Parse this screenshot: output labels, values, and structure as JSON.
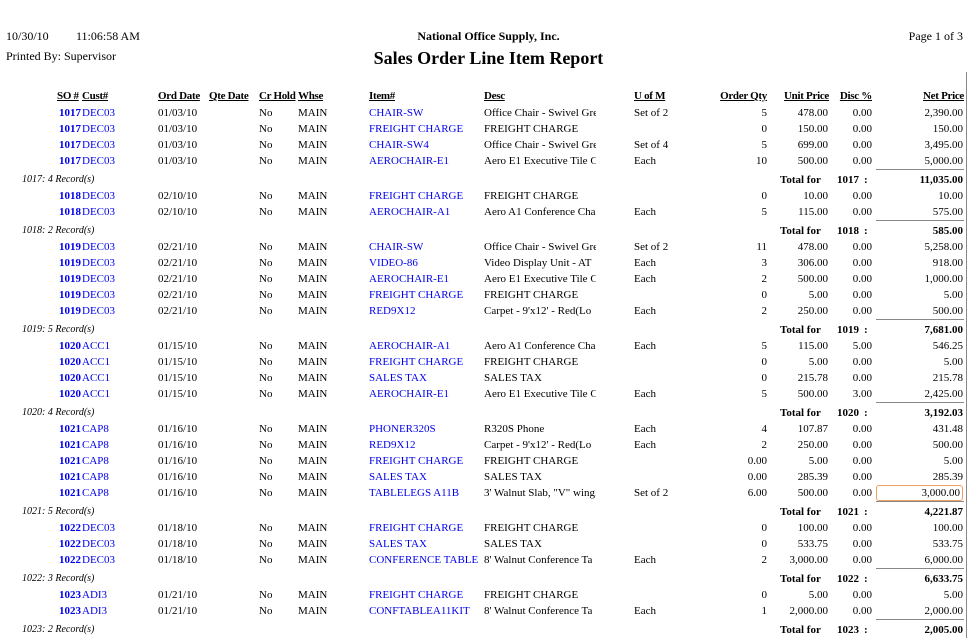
{
  "header": {
    "date": "10/30/10",
    "time": "11:06:58 AM",
    "printed_by": "Printed By: Supervisor",
    "company": "National Office Supply, Inc.",
    "title": "Sales Order Line Item Report",
    "page": "Page 1 of 3"
  },
  "columns": {
    "so": "SO #",
    "cust": "Cust#",
    "ord_date": "Ord Date",
    "qte_date": "Qte Date",
    "cr_hold": "Cr Hold",
    "whse": "Whse",
    "item": "Item#",
    "desc": "Desc",
    "uom": "U of M",
    "qty": "Order Qty",
    "price": "Unit Price",
    "disc": "Disc %",
    "net": "Net Price"
  },
  "total_label": "Total for",
  "groups": [
    {
      "so": "1017",
      "records": "1017: 4 Record(s)",
      "total": "11,035.00",
      "lines": [
        {
          "cust": "DEC03",
          "ord": "01/03/10",
          "hold": "No",
          "whse": "MAIN",
          "item": "CHAIR-SW",
          "desc": "Office Chair - Swivel Gre",
          "uom": "Set of 2",
          "qty": "5",
          "price": "478.00",
          "disc": "0.00",
          "net": "2,390.00"
        },
        {
          "cust": "DEC03",
          "ord": "01/03/10",
          "hold": "No",
          "whse": "MAIN",
          "item": "FREIGHT CHARGE",
          "desc": "FREIGHT CHARGE",
          "uom": "",
          "qty": "0",
          "price": "150.00",
          "disc": "0.00",
          "net": "150.00"
        },
        {
          "cust": "DEC03",
          "ord": "01/03/10",
          "hold": "No",
          "whse": "MAIN",
          "item": "CHAIR-SW4",
          "desc": "Office Chair - Swivel Gre",
          "uom": "Set of 4",
          "qty": "5",
          "price": "699.00",
          "disc": "0.00",
          "net": "3,495.00"
        },
        {
          "cust": "DEC03",
          "ord": "01/03/10",
          "hold": "No",
          "whse": "MAIN",
          "item": "AEROCHAIR-E1",
          "desc": "Aero E1 Executive Tile C",
          "uom": "Each",
          "qty": "10",
          "price": "500.00",
          "disc": "0.00",
          "net": "5,000.00"
        }
      ]
    },
    {
      "so": "1018",
      "records": "1018: 2 Record(s)",
      "total": "585.00",
      "lines": [
        {
          "cust": "DEC03",
          "ord": "02/10/10",
          "hold": "No",
          "whse": "MAIN",
          "item": "FREIGHT CHARGE",
          "desc": "FREIGHT CHARGE",
          "uom": "",
          "qty": "0",
          "price": "10.00",
          "disc": "0.00",
          "net": "10.00"
        },
        {
          "cust": "DEC03",
          "ord": "02/10/10",
          "hold": "No",
          "whse": "MAIN",
          "item": "AEROCHAIR-A1",
          "desc": "Aero A1 Conference Cha",
          "uom": "Each",
          "qty": "5",
          "price": "115.00",
          "disc": "0.00",
          "net": "575.00"
        }
      ]
    },
    {
      "so": "1019",
      "records": "1019: 5 Record(s)",
      "total": "7,681.00",
      "lines": [
        {
          "cust": "DEC03",
          "ord": "02/21/10",
          "hold": "No",
          "whse": "MAIN",
          "item": "CHAIR-SW",
          "desc": "Office Chair - Swivel Gre",
          "uom": "Set of 2",
          "qty": "11",
          "price": "478.00",
          "disc": "0.00",
          "net": "5,258.00"
        },
        {
          "cust": "DEC03",
          "ord": "02/21/10",
          "hold": "No",
          "whse": "MAIN",
          "item": "VIDEO-86",
          "desc": "Video Display Unit - AT",
          "uom": "Each",
          "qty": "3",
          "price": "306.00",
          "disc": "0.00",
          "net": "918.00"
        },
        {
          "cust": "DEC03",
          "ord": "02/21/10",
          "hold": "No",
          "whse": "MAIN",
          "item": "AEROCHAIR-E1",
          "desc": "Aero E1 Executive Tile C",
          "uom": "Each",
          "qty": "2",
          "price": "500.00",
          "disc": "0.00",
          "net": "1,000.00"
        },
        {
          "cust": "DEC03",
          "ord": "02/21/10",
          "hold": "No",
          "whse": "MAIN",
          "item": "FREIGHT CHARGE",
          "desc": "FREIGHT CHARGE",
          "uom": "",
          "qty": "0",
          "price": "5.00",
          "disc": "0.00",
          "net": "5.00"
        },
        {
          "cust": "DEC03",
          "ord": "02/21/10",
          "hold": "No",
          "whse": "MAIN",
          "item": "RED9X12",
          "desc": "Carpet - 9'x12' - Red(Lo",
          "uom": "Each",
          "qty": "2",
          "price": "250.00",
          "disc": "0.00",
          "net": "500.00"
        }
      ]
    },
    {
      "so": "1020",
      "records": "1020: 4 Record(s)",
      "total": "3,192.03",
      "lines": [
        {
          "cust": "ACC1",
          "ord": "01/15/10",
          "hold": "No",
          "whse": "MAIN",
          "item": "AEROCHAIR-A1",
          "desc": "Aero A1 Conference Cha",
          "uom": "Each",
          "qty": "5",
          "price": "115.00",
          "disc": "5.00",
          "net": "546.25"
        },
        {
          "cust": "ACC1",
          "ord": "01/15/10",
          "hold": "No",
          "whse": "MAIN",
          "item": "FREIGHT CHARGE",
          "desc": "FREIGHT CHARGE",
          "uom": "",
          "qty": "0",
          "price": "5.00",
          "disc": "0.00",
          "net": "5.00"
        },
        {
          "cust": "ACC1",
          "ord": "01/15/10",
          "hold": "No",
          "whse": "MAIN",
          "item": "SALES TAX",
          "desc": "SALES TAX",
          "uom": "",
          "qty": "0",
          "price": "215.78",
          "disc": "0.00",
          "net": "215.78"
        },
        {
          "cust": "ACC1",
          "ord": "01/15/10",
          "hold": "No",
          "whse": "MAIN",
          "item": "AEROCHAIR-E1",
          "desc": "Aero E1 Executive Tile C",
          "uom": "Each",
          "qty": "5",
          "price": "500.00",
          "disc": "3.00",
          "net": "2,425.00"
        }
      ]
    },
    {
      "so": "1021",
      "records": "1021: 5 Record(s)",
      "total": "4,221.87",
      "lines": [
        {
          "cust": "CAP8",
          "ord": "01/16/10",
          "hold": "No",
          "whse": "MAIN",
          "item": "PHONER320S",
          "desc": "R320S Phone",
          "uom": "Each",
          "qty": "4",
          "price": "107.87",
          "disc": "0.00",
          "net": "431.48"
        },
        {
          "cust": "CAP8",
          "ord": "01/16/10",
          "hold": "No",
          "whse": "MAIN",
          "item": "RED9X12",
          "desc": "Carpet - 9'x12' - Red(Lo",
          "uom": "Each",
          "qty": "2",
          "price": "250.00",
          "disc": "0.00",
          "net": "500.00"
        },
        {
          "cust": "CAP8",
          "ord": "01/16/10",
          "hold": "No",
          "whse": "MAIN",
          "item": "FREIGHT CHARGE",
          "desc": "FREIGHT CHARGE",
          "uom": "",
          "qty": "0.00",
          "price": "5.00",
          "disc": "0.00",
          "net": "5.00"
        },
        {
          "cust": "CAP8",
          "ord": "01/16/10",
          "hold": "No",
          "whse": "MAIN",
          "item": "SALES TAX",
          "desc": "SALES TAX",
          "uom": "",
          "qty": "0.00",
          "price": "285.39",
          "disc": "0.00",
          "net": "285.39"
        },
        {
          "cust": "CAP8",
          "ord": "01/16/10",
          "hold": "No",
          "whse": "MAIN",
          "item": "TABLELEGS A11B",
          "desc": "3' Walnut Slab, \"V\" wing.",
          "uom": "Set of 2",
          "qty": "6.00",
          "price": "500.00",
          "disc": "0.00",
          "net": "3,000.00",
          "selected": true
        }
      ]
    },
    {
      "so": "1022",
      "records": "1022: 3 Record(s)",
      "total": "6,633.75",
      "lines": [
        {
          "cust": "DEC03",
          "ord": "01/18/10",
          "hold": "No",
          "whse": "MAIN",
          "item": "FREIGHT CHARGE",
          "desc": "FREIGHT CHARGE",
          "uom": "",
          "qty": "0",
          "price": "100.00",
          "disc": "0.00",
          "net": "100.00"
        },
        {
          "cust": "DEC03",
          "ord": "01/18/10",
          "hold": "No",
          "whse": "MAIN",
          "item": "SALES TAX",
          "desc": "SALES TAX",
          "uom": "",
          "qty": "0",
          "price": "533.75",
          "disc": "0.00",
          "net": "533.75"
        },
        {
          "cust": "DEC03",
          "ord": "01/18/10",
          "hold": "No",
          "whse": "MAIN",
          "item": "CONFERENCE TABLE",
          "desc": "8' Walnut Conference Ta",
          "uom": "Each",
          "qty": "2",
          "price": "3,000.00",
          "disc": "0.00",
          "net": "6,000.00"
        }
      ]
    },
    {
      "so": "1023",
      "records": "1023: 2 Record(s)",
      "total": "2,005.00",
      "lines": [
        {
          "cust": "ADI3",
          "ord": "01/21/10",
          "hold": "No",
          "whse": "MAIN",
          "item": "FREIGHT CHARGE",
          "desc": "FREIGHT CHARGE",
          "uom": "",
          "qty": "0",
          "price": "5.00",
          "disc": "0.00",
          "net": "5.00"
        },
        {
          "cust": "ADI3",
          "ord": "01/21/10",
          "hold": "No",
          "whse": "MAIN",
          "item": "CONFTABLEA11KIT",
          "desc": "8' Walnut Conference Ta",
          "uom": "Each",
          "qty": "1",
          "price": "2,000.00",
          "disc": "0.00",
          "net": "2,000.00"
        }
      ]
    }
  ]
}
